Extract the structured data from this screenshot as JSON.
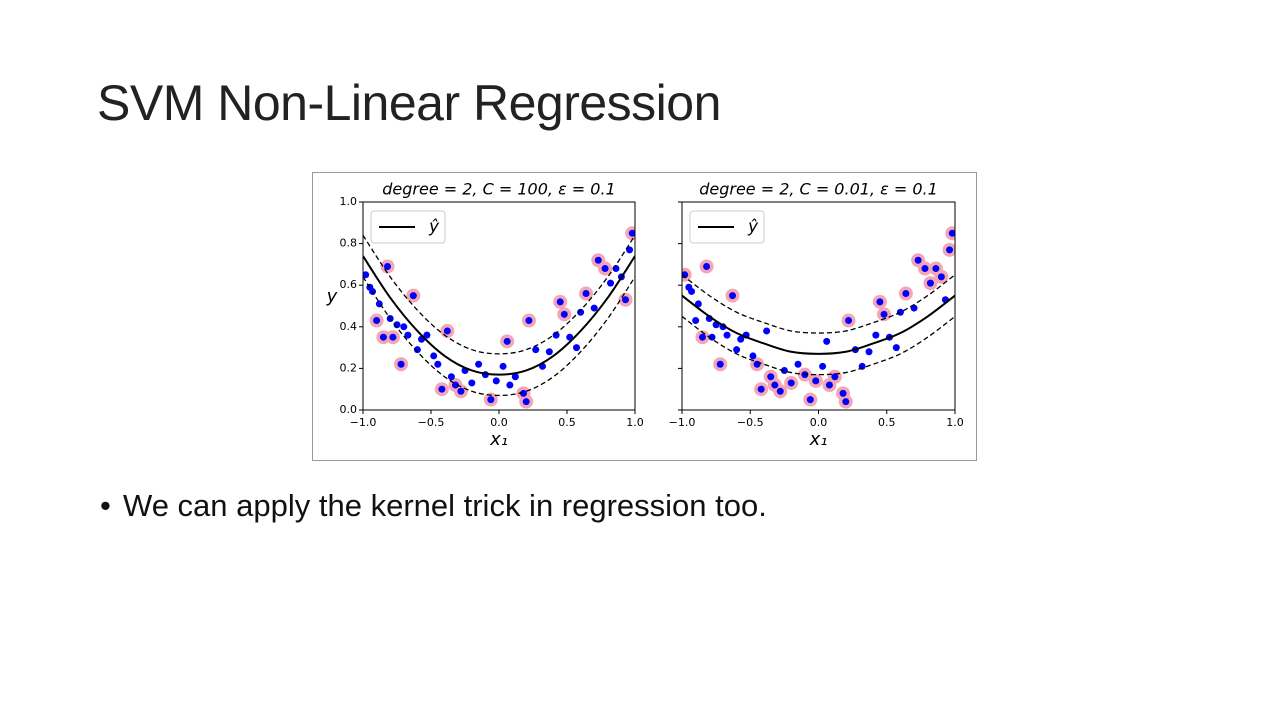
{
  "slide_title": "SVM Non-Linear Regression",
  "bullets": [
    "We can apply the kernel trick in regression too."
  ],
  "chart_data": [
    {
      "type": "scatter",
      "title": "degree = 2, C = 100, ε = 0.1",
      "xlabel": "x₁",
      "ylabel": "y",
      "legend": "upper left",
      "xlim": [
        -1,
        1
      ],
      "ylim": [
        0,
        1
      ],
      "xticks": [
        {
          "value": -1,
          "label": "−1.0"
        },
        {
          "value": -0.5,
          "label": "−0.5"
        },
        {
          "value": 0,
          "label": "0.0"
        },
        {
          "value": 0.5,
          "label": "0.5"
        },
        {
          "value": 1,
          "label": "1.0"
        }
      ],
      "yticks": [
        {
          "value": 0,
          "label": "0.0"
        },
        0.2,
        0.4,
        0.6,
        0.8,
        {
          "value": 1,
          "label": "1.0"
        }
      ],
      "series": [
        {
          "type": "scatter",
          "color": "#f4a6b4",
          "size": 7,
          "x": [
            -0.9,
            -0.85,
            -0.82,
            -0.78,
            -0.72,
            -0.63,
            -0.42,
            -0.38,
            -0.32,
            -0.28,
            -0.06,
            0.06,
            0.18,
            0.2,
            0.22,
            0.45,
            0.48,
            0.64,
            0.73,
            0.78,
            0.93,
            0.98
          ],
          "y": [
            0.43,
            0.35,
            0.69,
            0.35,
            0.22,
            0.55,
            0.1,
            0.38,
            0.12,
            0.09,
            0.05,
            0.33,
            0.08,
            0.04,
            0.43,
            0.52,
            0.46,
            0.56,
            0.72,
            0.68,
            0.53,
            0.85
          ]
        },
        {
          "type": "scatter",
          "color": "#0000ff",
          "size": 3.5,
          "x": [
            -0.98,
            -0.95,
            -0.93,
            -0.9,
            -0.88,
            -0.85,
            -0.82,
            -0.8,
            -0.78,
            -0.75,
            -0.72,
            -0.7,
            -0.67,
            -0.63,
            -0.6,
            -0.57,
            -0.53,
            -0.48,
            -0.45,
            -0.42,
            -0.38,
            -0.35,
            -0.32,
            -0.28,
            -0.25,
            -0.2,
            -0.15,
            -0.1,
            -0.06,
            -0.02,
            0.03,
            0.06,
            0.08,
            0.12,
            0.18,
            0.2,
            0.22,
            0.27,
            0.32,
            0.37,
            0.42,
            0.45,
            0.48,
            0.52,
            0.57,
            0.6,
            0.64,
            0.7,
            0.73,
            0.78,
            0.82,
            0.86,
            0.9,
            0.93,
            0.96,
            0.98
          ],
          "y": [
            0.65,
            0.59,
            0.57,
            0.43,
            0.51,
            0.35,
            0.69,
            0.44,
            0.35,
            0.41,
            0.22,
            0.4,
            0.36,
            0.55,
            0.29,
            0.34,
            0.36,
            0.26,
            0.22,
            0.1,
            0.38,
            0.16,
            0.12,
            0.09,
            0.19,
            0.13,
            0.22,
            0.17,
            0.05,
            0.14,
            0.21,
            0.33,
            0.12,
            0.16,
            0.08,
            0.04,
            0.43,
            0.29,
            0.21,
            0.28,
            0.36,
            0.52,
            0.46,
            0.35,
            0.3,
            0.47,
            0.56,
            0.49,
            0.72,
            0.68,
            0.61,
            0.68,
            0.64,
            0.53,
            0.77,
            0.85
          ]
        },
        {
          "type": "line",
          "style": "dashed",
          "color": "#000000",
          "x": [
            -1,
            -0.8,
            -0.6,
            -0.4,
            -0.2,
            0,
            0.2,
            0.4,
            0.6,
            0.8,
            1
          ],
          "y": [
            0.84,
            0.64,
            0.48,
            0.36,
            0.29,
            0.27,
            0.29,
            0.36,
            0.48,
            0.64,
            0.84
          ]
        },
        {
          "type": "line",
          "style": "dashed",
          "color": "#000000",
          "x": [
            -1,
            -0.8,
            -0.6,
            -0.4,
            -0.2,
            0,
            0.2,
            0.4,
            0.6,
            0.8,
            1
          ],
          "y": [
            0.64,
            0.44,
            0.28,
            0.16,
            0.09,
            0.07,
            0.09,
            0.16,
            0.28,
            0.44,
            0.64
          ]
        },
        {
          "type": "line",
          "style": "solid",
          "name": "ŷ",
          "color": "#000000",
          "x": [
            -1,
            -0.8,
            -0.6,
            -0.4,
            -0.2,
            0,
            0.2,
            0.4,
            0.6,
            0.8,
            1
          ],
          "y": [
            0.74,
            0.54,
            0.38,
            0.26,
            0.19,
            0.17,
            0.19,
            0.26,
            0.38,
            0.54,
            0.74
          ]
        }
      ]
    },
    {
      "type": "scatter",
      "title": "degree = 2, C = 0.01, ε = 0.1",
      "xlabel": "x₁",
      "legend": "upper left",
      "xlim": [
        -1,
        1
      ],
      "ylim": [
        0,
        1
      ],
      "xticks": [
        {
          "value": -1,
          "label": "−1.0"
        },
        {
          "value": -0.5,
          "label": "−0.5"
        },
        {
          "value": 0,
          "label": "0.0"
        },
        {
          "value": 0.5,
          "label": "0.5"
        },
        {
          "value": 1,
          "label": "1.0"
        }
      ],
      "yticks": [
        0,
        0.2,
        0.4,
        0.6,
        0.8,
        1
      ],
      "ytick_labels": false,
      "series": [
        {
          "type": "scatter",
          "color": "#f4a6b4",
          "size": 7,
          "x": [
            -0.98,
            -0.85,
            -0.82,
            -0.72,
            -0.63,
            -0.45,
            -0.42,
            -0.35,
            -0.32,
            -0.28,
            -0.2,
            -0.1,
            -0.06,
            -0.02,
            0.08,
            0.12,
            0.18,
            0.2,
            0.22,
            0.45,
            0.48,
            0.64,
            0.73,
            0.78,
            0.82,
            0.86,
            0.9,
            0.96,
            0.98
          ],
          "y": [
            0.65,
            0.35,
            0.69,
            0.22,
            0.55,
            0.22,
            0.1,
            0.16,
            0.12,
            0.09,
            0.13,
            0.17,
            0.05,
            0.14,
            0.12,
            0.16,
            0.08,
            0.04,
            0.43,
            0.52,
            0.46,
            0.56,
            0.72,
            0.68,
            0.61,
            0.68,
            0.64,
            0.77,
            0.85
          ]
        },
        {
          "type": "scatter",
          "color": "#0000ff",
          "size": 3.5,
          "x": [
            -0.98,
            -0.95,
            -0.93,
            -0.9,
            -0.88,
            -0.85,
            -0.82,
            -0.8,
            -0.78,
            -0.75,
            -0.72,
            -0.7,
            -0.67,
            -0.63,
            -0.6,
            -0.57,
            -0.53,
            -0.48,
            -0.45,
            -0.42,
            -0.38,
            -0.35,
            -0.32,
            -0.28,
            -0.25,
            -0.2,
            -0.15,
            -0.1,
            -0.06,
            -0.02,
            0.03,
            0.06,
            0.08,
            0.12,
            0.18,
            0.2,
            0.22,
            0.27,
            0.32,
            0.37,
            0.42,
            0.45,
            0.48,
            0.52,
            0.57,
            0.6,
            0.64,
            0.7,
            0.73,
            0.78,
            0.82,
            0.86,
            0.9,
            0.93,
            0.96,
            0.98
          ],
          "y": [
            0.65,
            0.59,
            0.57,
            0.43,
            0.51,
            0.35,
            0.69,
            0.44,
            0.35,
            0.41,
            0.22,
            0.4,
            0.36,
            0.55,
            0.29,
            0.34,
            0.36,
            0.26,
            0.22,
            0.1,
            0.38,
            0.16,
            0.12,
            0.09,
            0.19,
            0.13,
            0.22,
            0.17,
            0.05,
            0.14,
            0.21,
            0.33,
            0.12,
            0.16,
            0.08,
            0.04,
            0.43,
            0.29,
            0.21,
            0.28,
            0.36,
            0.52,
            0.46,
            0.35,
            0.3,
            0.47,
            0.56,
            0.49,
            0.72,
            0.68,
            0.61,
            0.68,
            0.64,
            0.53,
            0.77,
            0.85
          ]
        },
        {
          "type": "line",
          "style": "dashed",
          "color": "#000000",
          "x": [
            -1,
            -0.8,
            -0.6,
            -0.4,
            -0.2,
            0,
            0.2,
            0.4,
            0.6,
            0.8,
            1
          ],
          "y": [
            0.65,
            0.55,
            0.47,
            0.42,
            0.38,
            0.37,
            0.38,
            0.42,
            0.47,
            0.55,
            0.65
          ]
        },
        {
          "type": "line",
          "style": "dashed",
          "color": "#000000",
          "x": [
            -1,
            -0.8,
            -0.6,
            -0.4,
            -0.2,
            0,
            0.2,
            0.4,
            0.6,
            0.8,
            1
          ],
          "y": [
            0.45,
            0.35,
            0.27,
            0.22,
            0.18,
            0.17,
            0.18,
            0.22,
            0.27,
            0.35,
            0.45
          ]
        },
        {
          "type": "line",
          "style": "solid",
          "name": "ŷ",
          "color": "#000000",
          "x": [
            -1,
            -0.8,
            -0.6,
            -0.4,
            -0.2,
            0,
            0.2,
            0.4,
            0.6,
            0.8,
            1
          ],
          "y": [
            0.55,
            0.45,
            0.37,
            0.32,
            0.28,
            0.27,
            0.28,
            0.32,
            0.37,
            0.45,
            0.55
          ]
        }
      ]
    }
  ]
}
